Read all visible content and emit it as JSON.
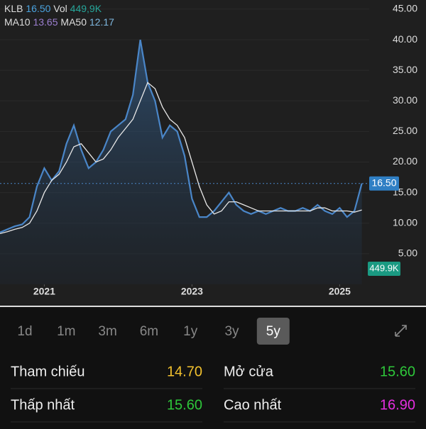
{
  "header": {
    "symbol": "KLB",
    "price": "16.50",
    "vol_label": "Vol",
    "vol": "449,9K",
    "ma10_label": "MA10",
    "ma10": "13.65",
    "ma50_label": "MA50",
    "ma50": "12.17"
  },
  "chart_data": {
    "type": "line",
    "x": [
      2020.4,
      2020.5,
      2020.6,
      2020.7,
      2020.8,
      2020.9,
      2021.0,
      2021.1,
      2021.2,
      2021.3,
      2021.4,
      2021.5,
      2021.6,
      2021.7,
      2021.8,
      2021.9,
      2022.0,
      2022.1,
      2022.2,
      2022.3,
      2022.4,
      2022.5,
      2022.6,
      2022.7,
      2022.8,
      2022.9,
      2023.0,
      2023.1,
      2023.2,
      2023.3,
      2023.4,
      2023.5,
      2023.6,
      2023.7,
      2023.8,
      2023.9,
      2024.0,
      2024.1,
      2024.2,
      2024.3,
      2024.4,
      2024.5,
      2024.6,
      2024.7,
      2024.8,
      2024.9,
      2025.0,
      2025.1,
      2025.2,
      2025.3
    ],
    "series": [
      {
        "name": "KLB",
        "color": "#4a86c8",
        "values": [
          8.5,
          9,
          9.5,
          9.8,
          11,
          16,
          19,
          17,
          18.5,
          23,
          26,
          22,
          19,
          20,
          22,
          25,
          26,
          27,
          31,
          40,
          33,
          30,
          24,
          26,
          25,
          21,
          14,
          11,
          11,
          12,
          13.5,
          15,
          13,
          12,
          11.5,
          12,
          11.5,
          12,
          12.5,
          12,
          12,
          12.5,
          12,
          13,
          12,
          11.5,
          12.5,
          11,
          12,
          16.5
        ]
      },
      {
        "name": "MA50",
        "color": "#e8e8e8",
        "values": [
          8.3,
          8.6,
          9,
          9.3,
          10,
          12,
          15,
          17,
          18,
          20,
          22.5,
          23,
          21.5,
          20,
          20.5,
          22,
          24,
          25.5,
          27,
          30,
          33,
          32,
          29,
          27,
          26,
          24,
          20,
          16,
          13,
          11.5,
          12,
          13.5,
          13.5,
          13,
          12.5,
          12,
          12,
          12,
          12,
          12,
          12,
          12,
          12,
          12.5,
          12.5,
          12,
          12,
          12,
          11.8,
          12.17
        ]
      }
    ],
    "xlim": [
      2020.4,
      2025.4
    ],
    "xticks": [
      2021,
      2023,
      2025
    ],
    "ylim": [
      0,
      46.5
    ],
    "yticks": [
      {
        "value": 5,
        "label": "5.00"
      },
      {
        "value": 10,
        "label": "10.00"
      },
      {
        "value": 15,
        "label": "15.00"
      },
      {
        "value": 20,
        "label": "20.00"
      },
      {
        "value": 25,
        "label": "25.00"
      },
      {
        "value": 30,
        "label": "30.00"
      },
      {
        "value": 35,
        "label": "35.00"
      },
      {
        "value": 40,
        "label": "40.00"
      },
      {
        "value": 45,
        "label": "45.00"
      }
    ],
    "price_tag": {
      "value": 16.5,
      "label": "16.50"
    },
    "volume_tag": "449.9K"
  },
  "range_tabs": [
    "1d",
    "1m",
    "3m",
    "6m",
    "1y",
    "3y",
    "5y"
  ],
  "selected_tab": 6,
  "stats": [
    {
      "label": "Tham chiếu",
      "value": "14.70",
      "color": "#f2c12e"
    },
    {
      "label": "Mở cửa",
      "value": "15.60",
      "color": "#2ec73a"
    },
    {
      "label": "Thấp nhất",
      "value": "15.60",
      "color": "#2ec73a"
    },
    {
      "label": "Cao nhất",
      "value": "16.90",
      "color": "#e52ee0"
    }
  ]
}
